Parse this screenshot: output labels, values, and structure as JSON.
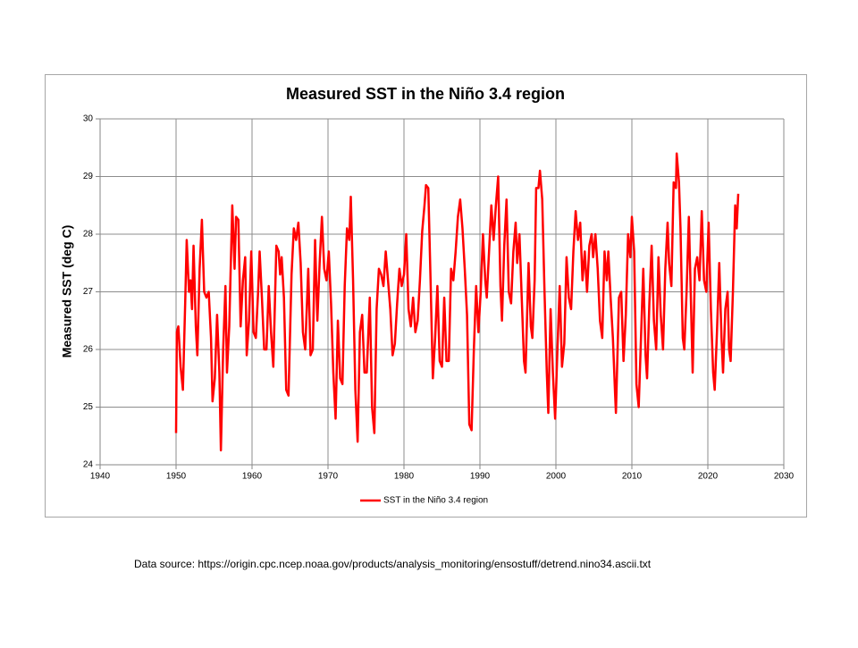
{
  "chart_data": {
    "type": "line",
    "title": "Measured SST in the Niño 3.4 region",
    "y_label": "Measured SST (deg C)",
    "xlim": [
      1940,
      2030
    ],
    "xticks": [
      1940,
      1950,
      1960,
      1970,
      1980,
      1990,
      2000,
      2010,
      2020,
      2030
    ],
    "ylim": [
      24,
      30
    ],
    "yticks": [
      24,
      25,
      26,
      27,
      28,
      29,
      30
    ],
    "grid": true,
    "legend": "bottom",
    "x": [
      1950.0,
      1950.1,
      1950.3,
      1950.6,
      1950.9,
      1951.2,
      1951.4,
      1951.7,
      1951.9,
      1952.1,
      1952.3,
      1952.6,
      1952.8,
      1953.1,
      1953.4,
      1953.7,
      1954.0,
      1954.3,
      1954.6,
      1954.8,
      1955.1,
      1955.4,
      1955.7,
      1955.9,
      1956.2,
      1956.5,
      1956.7,
      1957.0,
      1957.4,
      1957.7,
      1957.9,
      1958.2,
      1958.5,
      1958.8,
      1959.1,
      1959.3,
      1959.6,
      1959.9,
      1960.2,
      1960.5,
      1960.8,
      1961.0,
      1961.3,
      1961.6,
      1961.9,
      1962.2,
      1962.5,
      1962.8,
      1963.2,
      1963.5,
      1963.7,
      1963.9,
      1964.2,
      1964.5,
      1964.8,
      1965.2,
      1965.5,
      1965.8,
      1966.1,
      1966.4,
      1966.7,
      1967.0,
      1967.4,
      1967.7,
      1968.0,
      1968.3,
      1968.6,
      1968.9,
      1969.2,
      1969.5,
      1969.8,
      1970.1,
      1970.4,
      1970.7,
      1971.0,
      1971.3,
      1971.6,
      1971.9,
      1972.2,
      1972.5,
      1972.8,
      1973.0,
      1973.3,
      1973.6,
      1973.9,
      1974.2,
      1974.5,
      1974.8,
      1975.1,
      1975.5,
      1975.8,
      1976.1,
      1976.4,
      1976.7,
      1977.0,
      1977.3,
      1977.6,
      1977.9,
      1978.2,
      1978.5,
      1978.8,
      1979.1,
      1979.4,
      1979.7,
      1980.0,
      1980.3,
      1980.6,
      1980.9,
      1981.2,
      1981.5,
      1981.8,
      1982.1,
      1982.4,
      1982.7,
      1982.9,
      1983.2,
      1983.5,
      1983.8,
      1984.1,
      1984.4,
      1984.7,
      1985.0,
      1985.3,
      1985.6,
      1985.9,
      1986.2,
      1986.5,
      1986.8,
      1987.1,
      1987.4,
      1987.7,
      1988.0,
      1988.3,
      1988.6,
      1988.9,
      1989.2,
      1989.5,
      1989.8,
      1990.1,
      1990.4,
      1990.7,
      1990.9,
      1991.2,
      1991.5,
      1991.8,
      1992.1,
      1992.4,
      1992.7,
      1992.9,
      1993.2,
      1993.5,
      1993.8,
      1994.1,
      1994.4,
      1994.7,
      1994.9,
      1995.2,
      1995.5,
      1995.8,
      1996.0,
      1996.4,
      1996.7,
      1996.9,
      1997.2,
      1997.4,
      1997.7,
      1997.9,
      1998.2,
      1998.5,
      1998.8,
      1999.0,
      1999.3,
      1999.6,
      1999.9,
      2000.2,
      2000.5,
      2000.8,
      2001.1,
      2001.4,
      2001.7,
      2002.0,
      2002.3,
      2002.6,
      2002.9,
      2003.2,
      2003.5,
      2003.8,
      2004.1,
      2004.4,
      2004.7,
      2004.9,
      2005.2,
      2005.5,
      2005.8,
      2006.1,
      2006.4,
      2006.7,
      2006.9,
      2007.2,
      2007.5,
      2007.8,
      2007.9,
      2008.3,
      2008.6,
      2008.9,
      2009.2,
      2009.5,
      2009.8,
      2010.0,
      2010.3,
      2010.6,
      2010.9,
      2011.2,
      2011.5,
      2011.8,
      2012.0,
      2012.3,
      2012.6,
      2012.9,
      2013.2,
      2013.5,
      2013.8,
      2014.1,
      2014.4,
      2014.7,
      2014.9,
      2015.2,
      2015.5,
      2015.8,
      2015.9,
      2016.2,
      2016.4,
      2016.7,
      2016.9,
      2017.2,
      2017.5,
      2017.8,
      2018.0,
      2018.3,
      2018.6,
      2018.9,
      2019.2,
      2019.5,
      2019.8,
      2020.1,
      2020.4,
      2020.7,
      2020.9,
      2021.2,
      2021.5,
      2021.8,
      2022.0,
      2022.3,
      2022.6,
      2022.8,
      2023.0,
      2023.3,
      2023.6,
      2023.8,
      2024.0
    ],
    "series": [
      {
        "name": "SST in the Niño 3.4 region",
        "color": "#ff0000",
        "values": [
          24.55,
          26.3,
          26.4,
          25.7,
          25.3,
          26.8,
          27.9,
          27.0,
          27.2,
          26.7,
          27.8,
          26.4,
          25.9,
          27.4,
          28.25,
          27.0,
          26.9,
          27.0,
          26.2,
          25.1,
          25.5,
          26.6,
          25.6,
          24.25,
          26.0,
          27.1,
          25.6,
          26.4,
          28.5,
          27.4,
          28.3,
          28.25,
          26.4,
          27.2,
          27.6,
          25.9,
          26.5,
          27.7,
          26.3,
          26.2,
          27.0,
          27.7,
          26.9,
          26.0,
          26.0,
          27.1,
          26.3,
          25.7,
          27.8,
          27.7,
          27.3,
          27.6,
          26.9,
          25.3,
          25.2,
          27.3,
          28.1,
          27.9,
          28.2,
          27.5,
          26.3,
          26.0,
          27.4,
          25.9,
          26.0,
          27.9,
          26.5,
          27.5,
          28.3,
          27.4,
          27.2,
          27.7,
          26.8,
          25.6,
          24.8,
          26.5,
          25.5,
          25.4,
          27.1,
          28.1,
          27.9,
          28.65,
          27.2,
          25.3,
          24.4,
          26.3,
          26.6,
          25.6,
          25.6,
          26.9,
          25.0,
          24.55,
          26.7,
          27.4,
          27.3,
          27.1,
          27.7,
          27.2,
          26.7,
          25.9,
          26.1,
          26.8,
          27.4,
          27.1,
          27.3,
          28.0,
          26.7,
          26.4,
          26.9,
          26.3,
          26.5,
          27.2,
          28.05,
          28.5,
          28.85,
          28.8,
          27.2,
          25.5,
          26.2,
          27.1,
          25.8,
          25.7,
          26.9,
          25.8,
          25.8,
          27.4,
          27.2,
          27.7,
          28.3,
          28.6,
          28.1,
          27.4,
          26.6,
          24.7,
          24.6,
          26.0,
          27.1,
          26.3,
          27.0,
          28.0,
          27.2,
          26.9,
          27.7,
          28.5,
          27.9,
          28.5,
          29.0,
          27.1,
          26.5,
          27.8,
          28.6,
          27.0,
          26.8,
          27.7,
          28.2,
          27.5,
          28.0,
          26.9,
          25.8,
          25.6,
          27.5,
          26.4,
          26.2,
          27.2,
          28.8,
          28.8,
          29.1,
          28.6,
          27.0,
          25.6,
          24.9,
          26.7,
          25.6,
          24.8,
          26.0,
          27.1,
          25.7,
          26.1,
          27.6,
          26.9,
          26.7,
          27.7,
          28.4,
          27.9,
          28.2,
          27.2,
          27.7,
          27.0,
          27.8,
          28.0,
          27.6,
          28.0,
          27.4,
          26.5,
          26.2,
          27.7,
          27.2,
          27.7,
          26.9,
          26.2,
          25.2,
          24.9,
          26.9,
          27.0,
          25.8,
          26.6,
          28.0,
          27.6,
          28.3,
          27.7,
          25.4,
          25.0,
          26.2,
          27.4,
          25.9,
          25.5,
          26.8,
          27.8,
          26.5,
          26.0,
          27.6,
          26.6,
          26.0,
          27.4,
          28.2,
          27.5,
          27.1,
          28.9,
          28.8,
          29.4,
          28.9,
          28.1,
          26.2,
          26.0,
          27.0,
          28.3,
          26.7,
          25.6,
          27.4,
          27.6,
          27.2,
          28.4,
          27.2,
          27.0,
          28.2,
          26.7,
          25.6,
          25.3,
          26.3,
          27.5,
          26.2,
          25.6,
          26.7,
          27.0,
          26.0,
          25.8,
          27.0,
          28.5,
          28.1,
          28.7
        ]
      }
    ]
  },
  "footer": {
    "source": "Data source:  https://origin.cpc.ncep.noaa.gov/products/analysis_monitoring/ensostuff/detrend.nino34.ascii.txt"
  }
}
